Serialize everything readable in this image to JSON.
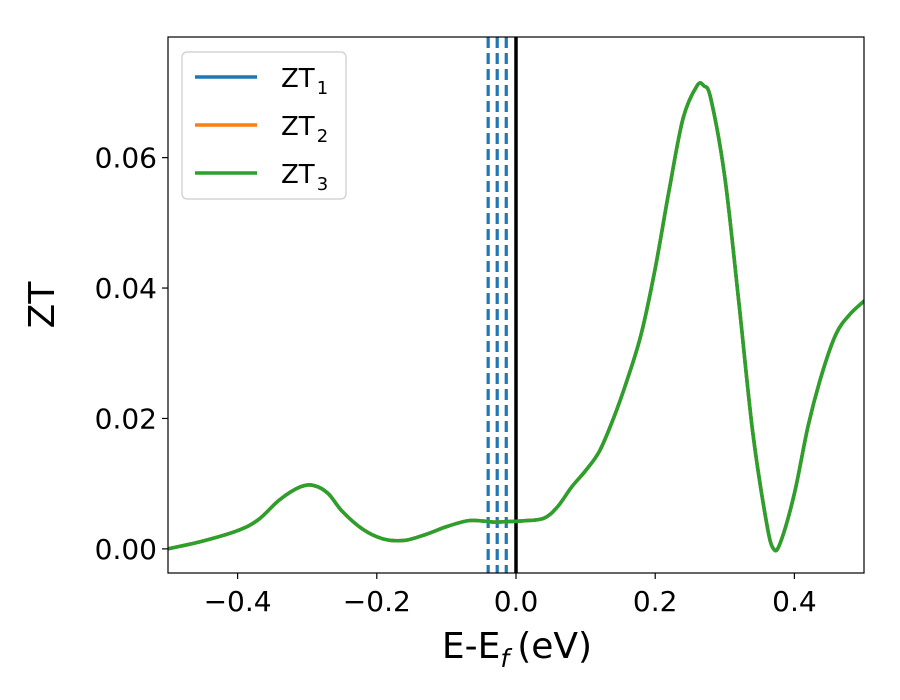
{
  "chart_data": {
    "type": "line",
    "title": "",
    "xlabel": "E-E",
    "xlabel_sub": "f",
    "xlabel_unit": "(eV)",
    "ylabel": "ZT",
    "xlim": [
      -0.5,
      0.5
    ],
    "ylim": [
      -0.0037,
      0.0785
    ],
    "xticks": [
      -0.4,
      -0.2,
      0.0,
      0.2,
      0.4
    ],
    "xtick_labels": [
      "−0.4",
      "−0.2",
      "0.0",
      "0.2",
      "0.4"
    ],
    "yticks": [
      0.0,
      0.02,
      0.04,
      0.06
    ],
    "ytick_labels": [
      "0.00",
      "0.02",
      "0.04",
      "0.06"
    ],
    "grid": false,
    "legend_position": "top-left",
    "vlines": [
      {
        "x": -0.04,
        "style": "dashed",
        "color": "#1f77b4"
      },
      {
        "x": -0.027,
        "style": "dashed",
        "color": "#1f77b4"
      },
      {
        "x": -0.014,
        "style": "dashed",
        "color": "#1f77b4"
      },
      {
        "x": 0.0,
        "style": "solid",
        "color": "#000000"
      }
    ],
    "x": [
      -0.5,
      -0.45,
      -0.4,
      -0.37,
      -0.34,
      -0.31,
      -0.29,
      -0.27,
      -0.25,
      -0.22,
      -0.19,
      -0.16,
      -0.13,
      -0.1,
      -0.07,
      -0.05,
      -0.03,
      -0.01,
      0.01,
      0.04,
      0.06,
      0.08,
      0.1,
      0.12,
      0.14,
      0.16,
      0.18,
      0.2,
      0.22,
      0.24,
      0.26,
      0.27,
      0.28,
      0.3,
      0.32,
      0.34,
      0.36,
      0.37,
      0.38,
      0.4,
      0.42,
      0.44,
      0.46,
      0.48,
      0.5
    ],
    "series": [
      {
        "name": "ZT",
        "sub": "1",
        "color": "#1f77b4",
        "values": [
          0.0,
          0.0012,
          0.0028,
          0.0045,
          0.0075,
          0.0095,
          0.0097,
          0.0085,
          0.0058,
          0.003,
          0.0015,
          0.0013,
          0.0022,
          0.0034,
          0.0043,
          0.0043,
          0.0041,
          0.0042,
          0.0043,
          0.0047,
          0.0065,
          0.0095,
          0.012,
          0.015,
          0.02,
          0.026,
          0.033,
          0.043,
          0.055,
          0.066,
          0.071,
          0.071,
          0.069,
          0.057,
          0.038,
          0.018,
          0.004,
          0.0,
          0.001,
          0.0085,
          0.019,
          0.027,
          0.033,
          0.036,
          0.038
        ]
      },
      {
        "name": "ZT",
        "sub": "2",
        "color": "#ff7f0e",
        "values": [
          0.0,
          0.0012,
          0.0028,
          0.0045,
          0.0075,
          0.0095,
          0.0097,
          0.0085,
          0.0058,
          0.003,
          0.0015,
          0.0013,
          0.0022,
          0.0034,
          0.0043,
          0.0043,
          0.0041,
          0.0042,
          0.0043,
          0.0047,
          0.0065,
          0.0095,
          0.012,
          0.015,
          0.02,
          0.026,
          0.033,
          0.043,
          0.055,
          0.066,
          0.071,
          0.071,
          0.069,
          0.057,
          0.038,
          0.018,
          0.004,
          0.0,
          0.001,
          0.0085,
          0.019,
          0.027,
          0.033,
          0.036,
          0.038
        ]
      },
      {
        "name": "ZT",
        "sub": "3",
        "color": "#2ca02c",
        "values": [
          0.0,
          0.0012,
          0.0028,
          0.0045,
          0.0075,
          0.0095,
          0.0097,
          0.0085,
          0.0058,
          0.003,
          0.0015,
          0.0013,
          0.0022,
          0.0034,
          0.0043,
          0.0043,
          0.0041,
          0.0042,
          0.0043,
          0.0047,
          0.0065,
          0.0095,
          0.012,
          0.015,
          0.02,
          0.026,
          0.033,
          0.043,
          0.055,
          0.066,
          0.071,
          0.071,
          0.069,
          0.057,
          0.038,
          0.018,
          0.004,
          0.0,
          0.001,
          0.0085,
          0.019,
          0.027,
          0.033,
          0.036,
          0.038
        ]
      }
    ]
  }
}
